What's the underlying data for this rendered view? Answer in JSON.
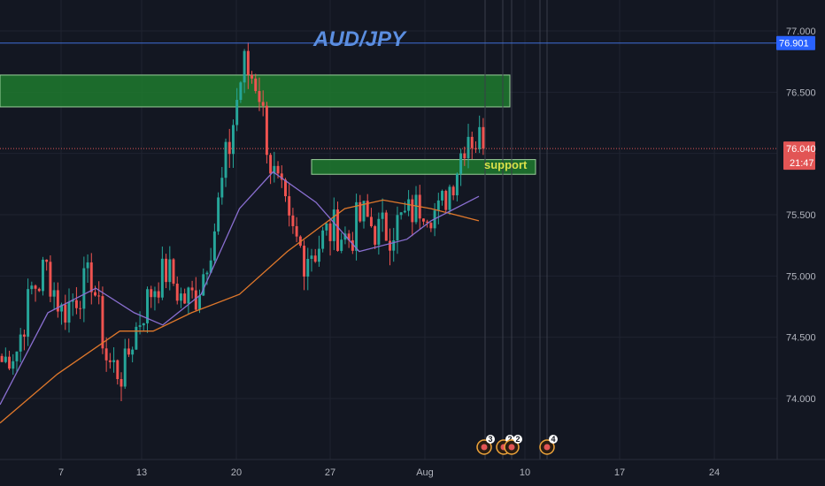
{
  "symbol_title": "AUD/JPY",
  "colors": {
    "background": "#131722",
    "grid": "#1f2330",
    "up": "#26a69a",
    "down": "#ef5350",
    "ma_fast": "#8a6fd1",
    "ma_slow": "#e0782b",
    "resistance_line": "#3f6fd8",
    "zone_fill": "#1e7a2e",
    "zone_border": "#9ad09a",
    "current_price": "#e25555"
  },
  "price_axis": {
    "ticks": [
      "77.000",
      "76.500",
      "76.000",
      "75.500",
      "75.000",
      "74.500",
      "74.000"
    ],
    "resistance_label": "76.901",
    "current_label": "76.040",
    "countdown_label": "21:47"
  },
  "date_axis": {
    "ticks": [
      "7",
      "13",
      "20",
      "27",
      "Aug",
      "10",
      "17",
      "24"
    ]
  },
  "annotations": {
    "support_label": "support"
  },
  "events": [
    {
      "label": "3",
      "icon": "calendar-event-icon"
    },
    {
      "label": "2",
      "icon": "calendar-event-icon"
    },
    {
      "label": "2",
      "icon": "calendar-event-icon"
    },
    {
      "label": "4",
      "icon": "calendar-event-icon"
    }
  ],
  "chart_data": {
    "type": "candlestick",
    "title": "AUD/JPY",
    "ylim": [
      73.5,
      77.1
    ],
    "y_ticks": [
      77.0,
      76.5,
      76.0,
      75.5,
      75.0,
      74.5,
      74.0
    ],
    "x_tick_labels": [
      "7",
      "13",
      "20",
      "27",
      "Aug",
      "10",
      "17",
      "24"
    ],
    "resistance_level": 76.901,
    "current_price": 76.04,
    "resistance_zone": [
      76.38,
      76.64
    ],
    "support_zone": [
      75.83,
      75.95
    ],
    "waypoints": [
      [
        74.3,
        0.25
      ],
      [
        74.4,
        0.3
      ],
      [
        74.9,
        0.4
      ],
      [
        75.05,
        0.3
      ],
      [
        74.7,
        0.3
      ],
      [
        74.85,
        0.3
      ],
      [
        75.0,
        0.3
      ],
      [
        74.3,
        0.3
      ],
      [
        74.2,
        0.25
      ],
      [
        74.6,
        0.3
      ],
      [
        74.9,
        0.3
      ],
      [
        75.05,
        0.3
      ],
      [
        74.8,
        0.3
      ],
      [
        74.85,
        0.25
      ],
      [
        75.3,
        0.35
      ],
      [
        76.0,
        0.5
      ],
      [
        76.7,
        0.4
      ],
      [
        76.6,
        0.3
      ],
      [
        75.8,
        0.5
      ],
      [
        75.35,
        0.4
      ],
      [
        75.2,
        0.4
      ],
      [
        75.25,
        0.35
      ],
      [
        75.4,
        0.3
      ],
      [
        75.3,
        0.35
      ],
      [
        75.5,
        0.3
      ],
      [
        75.35,
        0.35
      ],
      [
        75.4,
        0.3
      ],
      [
        75.5,
        0.3
      ],
      [
        75.6,
        0.3
      ],
      [
        75.5,
        0.3
      ],
      [
        75.8,
        0.3
      ],
      [
        76.2,
        0.4
      ],
      [
        76.05,
        0.3
      ]
    ],
    "ma_fast": [
      [
        73.95,
        0.0
      ],
      [
        74.7,
        0.1
      ],
      [
        74.9,
        0.2
      ],
      [
        74.7,
        0.28
      ],
      [
        74.6,
        0.34
      ],
      [
        74.85,
        0.42
      ],
      [
        75.55,
        0.5
      ],
      [
        75.85,
        0.57
      ],
      [
        75.6,
        0.66
      ],
      [
        75.2,
        0.75
      ],
      [
        75.3,
        0.85
      ],
      [
        75.45,
        0.9
      ],
      [
        75.65,
        1.0
      ]
    ],
    "ma_slow": [
      [
        73.8,
        0.0
      ],
      [
        74.2,
        0.12
      ],
      [
        74.55,
        0.25
      ],
      [
        74.55,
        0.32
      ],
      [
        74.7,
        0.4
      ],
      [
        74.85,
        0.5
      ],
      [
        75.2,
        0.6
      ],
      [
        75.55,
        0.72
      ],
      [
        75.62,
        0.8
      ],
      [
        75.55,
        0.9
      ],
      [
        75.45,
        1.0
      ]
    ]
  }
}
